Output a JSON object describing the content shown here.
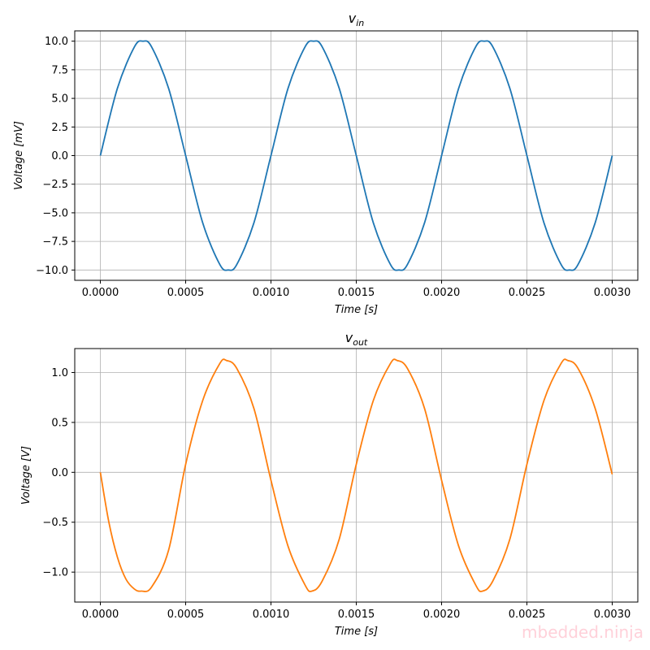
{
  "watermark": "mbedded.ninja",
  "chart_data": [
    {
      "type": "line",
      "title_main": "v",
      "title_sub": "in",
      "xlabel": "Time [s]",
      "ylabel": "Voltage [mV]",
      "xlim": [
        -0.00015,
        0.00315
      ],
      "ylim": [
        -10.9,
        10.9
      ],
      "xticks": [
        "0.0000",
        "0.0005",
        "0.0010",
        "0.0015",
        "0.0020",
        "0.0025",
        "0.0030"
      ],
      "xtick_values": [
        0,
        0.0005,
        0.001,
        0.0015,
        0.002,
        0.0025,
        0.003
      ],
      "yticks": [
        "−10.0",
        "−7.5",
        "−5.0",
        "−2.5",
        "0.0",
        "2.5",
        "5.0",
        "7.5",
        "10.0"
      ],
      "ytick_values": [
        -10,
        -7.5,
        -5,
        -2.5,
        0,
        2.5,
        5,
        7.5,
        10
      ],
      "grid": true,
      "series": [
        {
          "color": "#1f77b4",
          "x": [
            0,
            0.0001,
            0.0002,
            0.00025,
            0.0003,
            0.0004,
            0.0005,
            0.0006,
            0.0007,
            0.00075,
            0.0008,
            0.0009,
            0.001,
            0.0011,
            0.0012,
            0.00125,
            0.0013,
            0.0014,
            0.0015,
            0.0016,
            0.0017,
            0.00175,
            0.0018,
            0.0019,
            0.002,
            0.0021,
            0.0022,
            0.00225,
            0.0023,
            0.0024,
            0.0025,
            0.0026,
            0.0027,
            0.00275,
            0.0028,
            0.0029,
            0.003
          ],
          "y": [
            0,
            5.88,
            9.51,
            10,
            9.51,
            5.88,
            0,
            -5.88,
            -9.51,
            -10,
            -9.51,
            -5.88,
            0,
            5.88,
            9.51,
            10,
            9.51,
            5.88,
            0,
            -5.88,
            -9.51,
            -10,
            -9.51,
            -5.88,
            0,
            5.88,
            9.51,
            10,
            9.51,
            5.88,
            0,
            -5.88,
            -9.51,
            -10,
            -9.51,
            -5.88,
            0
          ]
        }
      ]
    },
    {
      "type": "line",
      "title_main": "v",
      "title_sub": "out",
      "xlabel": "Time [s]",
      "ylabel": "Voltage [V]",
      "xlim": [
        -0.00015,
        0.00315
      ],
      "ylim": [
        -1.3,
        1.24
      ],
      "xticks": [
        "0.0000",
        "0.0005",
        "0.0010",
        "0.0015",
        "0.0020",
        "0.0025",
        "0.0030"
      ],
      "xtick_values": [
        0,
        0.0005,
        0.001,
        0.0015,
        0.002,
        0.0025,
        0.003
      ],
      "yticks": [
        "−1.0",
        "−0.5",
        "0.0",
        "0.5",
        "1.0"
      ],
      "ytick_values": [
        -1,
        -0.5,
        0,
        0.5,
        1
      ],
      "grid": true,
      "series": [
        {
          "color": "#ff7f0e",
          "x": [
            0,
            5e-05,
            0.0001,
            0.00015,
            0.0002,
            0.00024,
            0.0003,
            0.0004,
            0.0005,
            0.0006,
            0.0007,
            0.00074,
            0.0008,
            0.0009,
            0.001,
            0.0011,
            0.0012,
            0.00124,
            0.0013,
            0.0014,
            0.0015,
            0.0016,
            0.0017,
            0.00174,
            0.0018,
            0.0019,
            0.002,
            0.0021,
            0.0022,
            0.00224,
            0.0023,
            0.0024,
            0.0025,
            0.0026,
            0.0027,
            0.00274,
            0.0028,
            0.0029,
            0.003
          ],
          "y": [
            0,
            -0.5,
            -0.85,
            -1.07,
            -1.17,
            -1.19,
            -1.15,
            -0.78,
            0.08,
            0.72,
            1.09,
            1.12,
            1.04,
            0.64,
            -0.08,
            -0.74,
            -1.13,
            -1.19,
            -1.09,
            -0.67,
            0.08,
            0.72,
            1.09,
            1.12,
            1.04,
            0.64,
            -0.08,
            -0.74,
            -1.13,
            -1.19,
            -1.09,
            -0.67,
            0.08,
            0.72,
            1.09,
            1.12,
            1.04,
            0.64,
            -0.02
          ]
        }
      ]
    }
  ]
}
